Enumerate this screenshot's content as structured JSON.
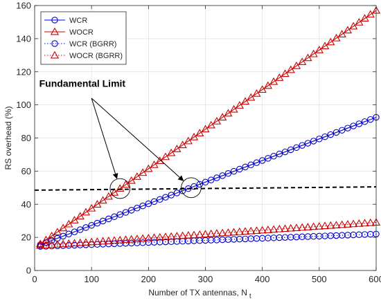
{
  "chart_data": {
    "type": "line",
    "title": "",
    "xlabel": "Number of TX antennas, N",
    "xlabel_subscript": "t",
    "ylabel": "RS overhead (%)",
    "xlim": [
      0,
      600
    ],
    "ylim": [
      0,
      160
    ],
    "xticks": [
      0,
      100,
      200,
      300,
      400,
      500,
      600
    ],
    "yticks": [
      0,
      20,
      40,
      60,
      80,
      100,
      120,
      140,
      160
    ],
    "grid": true,
    "legend_position": "top-left",
    "series": [
      {
        "name": "WCR",
        "color": "#0000cc",
        "marker": "circle",
        "line": "solid",
        "x_start": 10,
        "x_end": 600,
        "x_step": 10,
        "y_start": 15.5,
        "y_end": 92.5
      },
      {
        "name": "WOCR",
        "color": "#cc0000",
        "marker": "triangle",
        "line": "solid",
        "x_start": 10,
        "x_end": 600,
        "x_step": 10,
        "y_start": 16.0,
        "y_end": 157.0
      },
      {
        "name": "WCR (BGRR)",
        "color": "#0000cc",
        "marker": "circle",
        "line": "dotted",
        "x_start": 10,
        "x_end": 600,
        "x_step": 10,
        "y_start": 14.5,
        "y_end": 22.0
      },
      {
        "name": "WOCR (BGRR)",
        "color": "#cc0000",
        "marker": "triangle",
        "line": "dotted",
        "x_start": 10,
        "x_end": 600,
        "x_step": 10,
        "y_start": 15.0,
        "y_end": 29.0
      }
    ],
    "limit_line": {
      "x": [
        0,
        600
      ],
      "y": [
        48.5,
        50.5
      ],
      "color": "#000000",
      "style": "dashed"
    },
    "annotation": {
      "text": "Fundamental Limit",
      "label_at": [
        75,
        111
      ],
      "arrow_from": [
        100,
        104
      ],
      "targets": [
        [
          150,
          49.5
        ],
        [
          275,
          50
        ]
      ],
      "circle_radius": 6
    }
  }
}
